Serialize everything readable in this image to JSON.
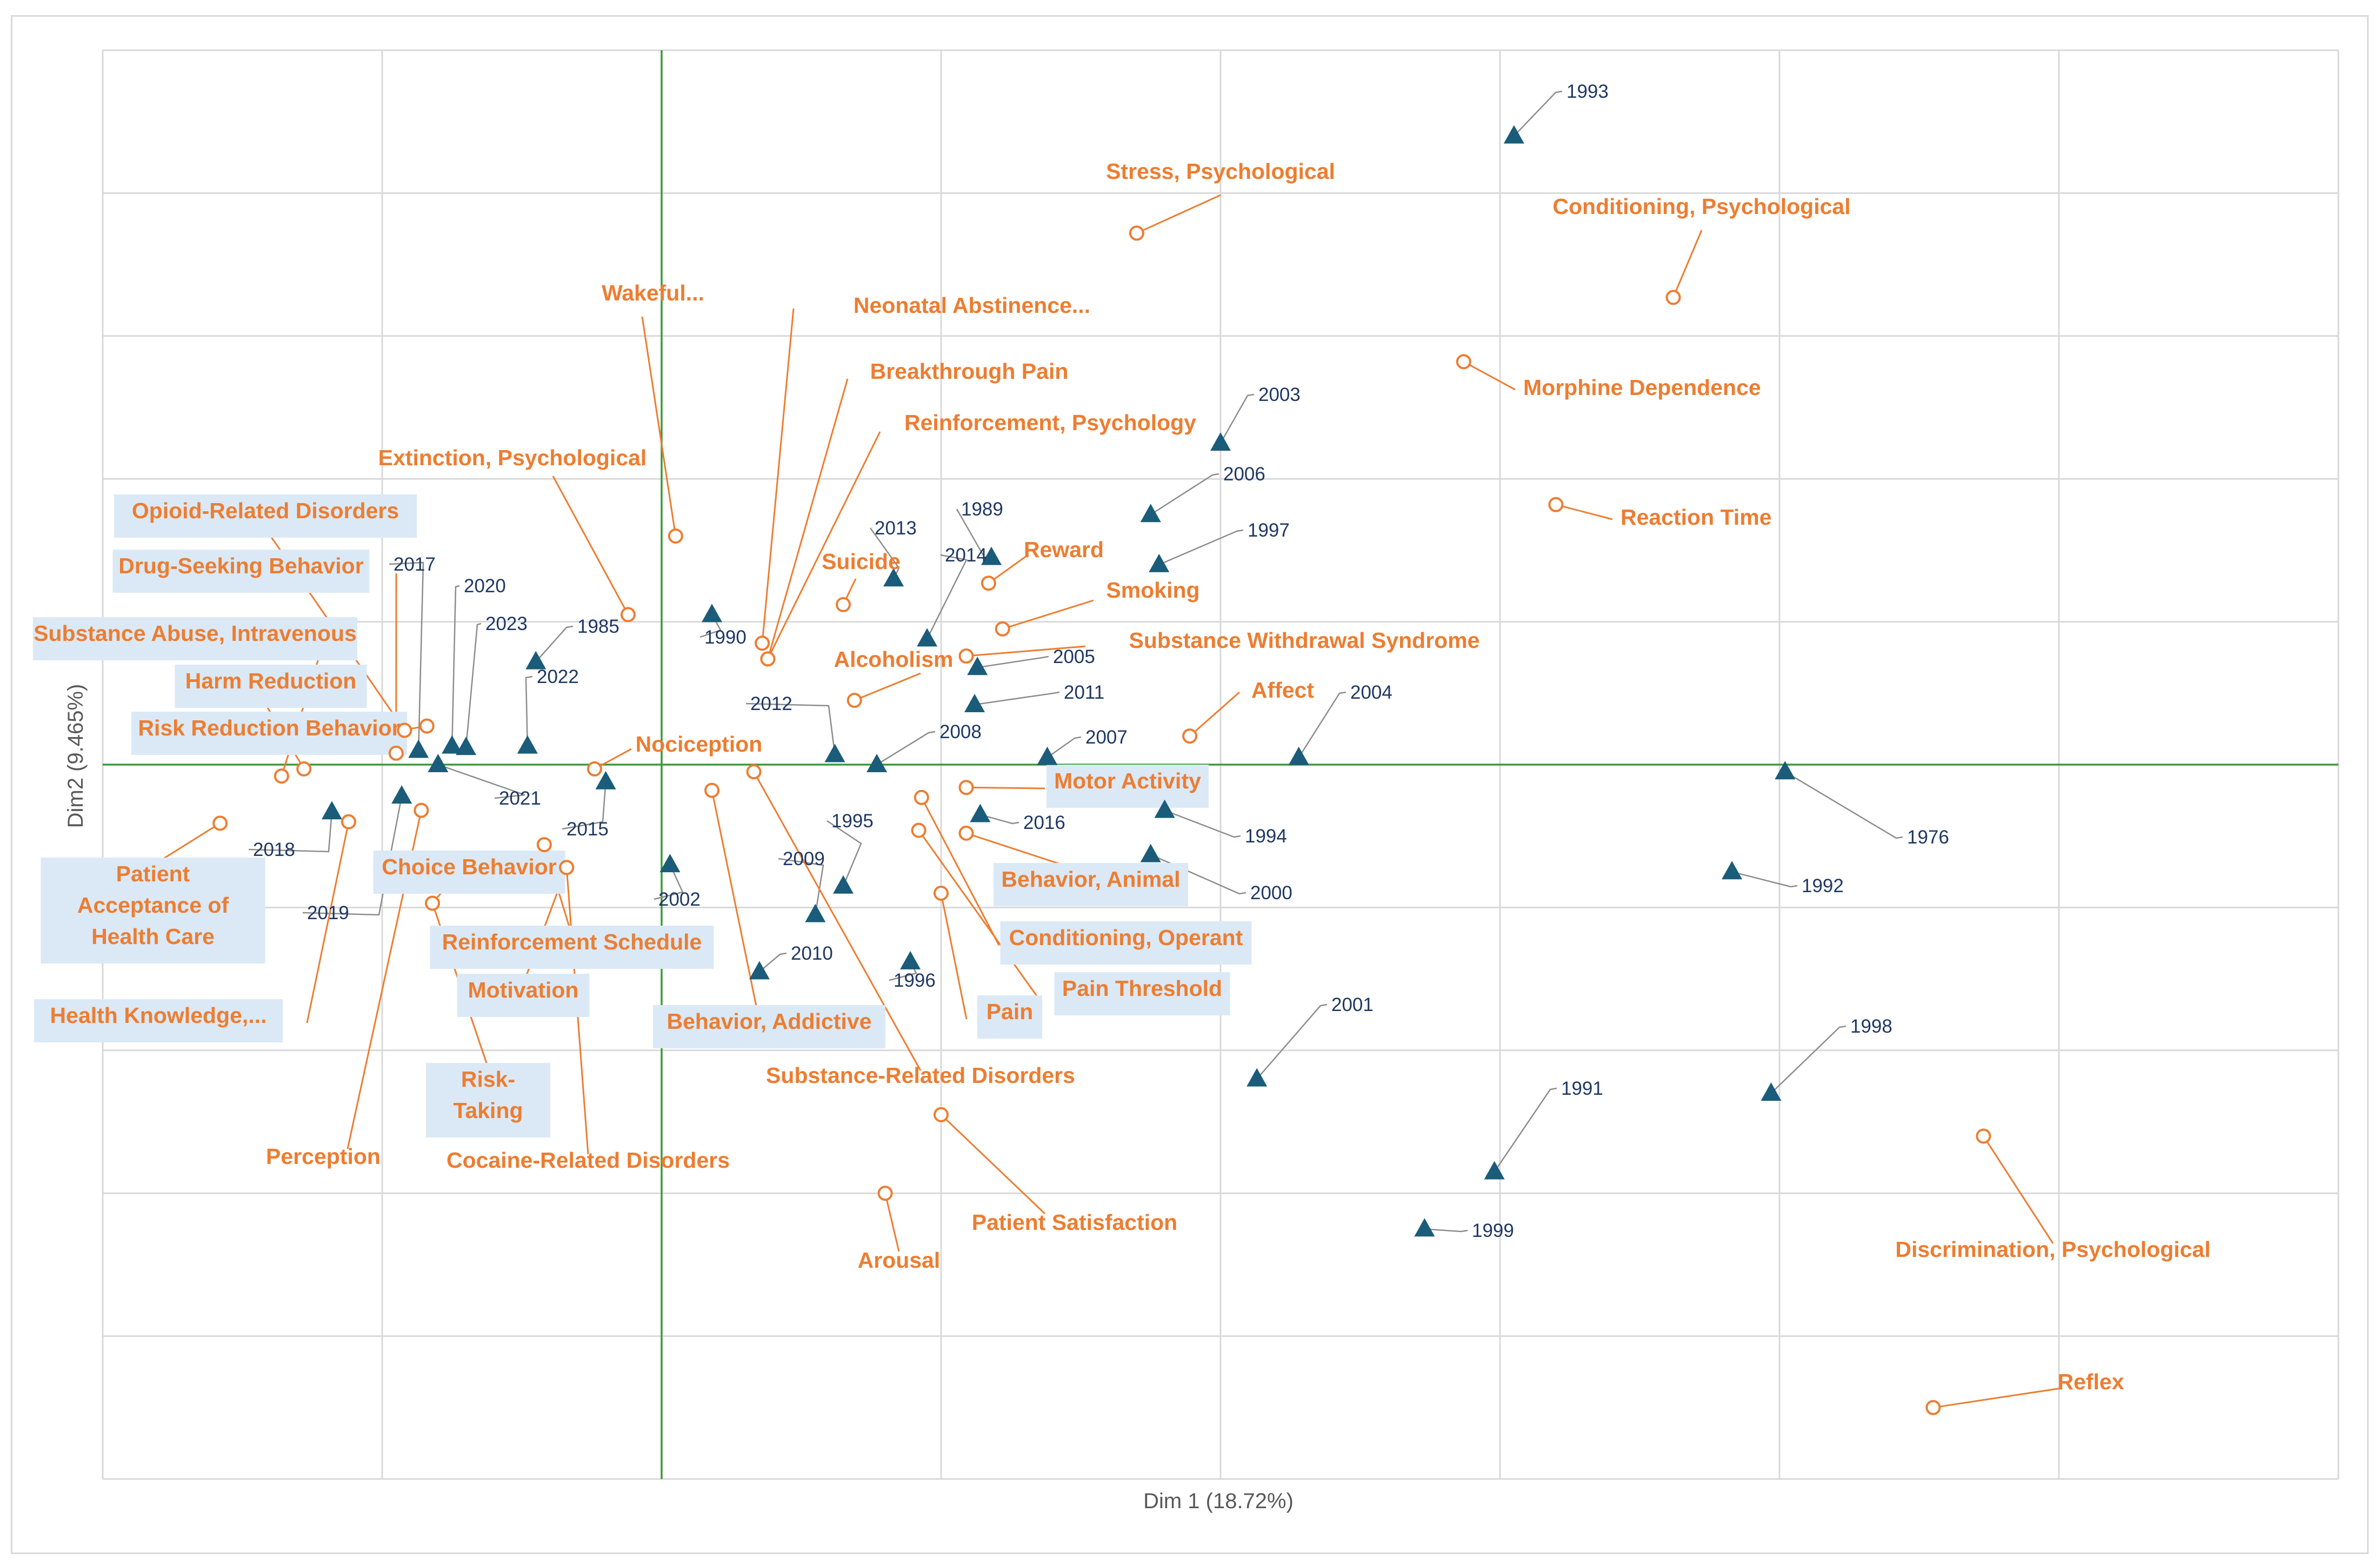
{
  "chart_data": {
    "type": "scatter",
    "title": "",
    "xlabel": "Dim 1 (18.72%)",
    "ylabel": "Dim2 (9.465%)",
    "xlim": [
      -2.0,
      6.0
    ],
    "ylim": [
      -5.0,
      5.0
    ],
    "grid": true,
    "colors": {
      "years": "#1a5c7a",
      "years_label": "#1f3864",
      "terms": "#ed7d31",
      "axes_zero": "#3a9a3a",
      "grid": "#d9d9d9",
      "leader_year": "#8c8c8c",
      "highlight_box": "#dbe9f6"
    },
    "series": [
      {
        "name": "Years",
        "marker": "triangle",
        "points": [
          {
            "label": "1993",
            "x": 3.05,
            "y": 4.4
          },
          {
            "label": "2003",
            "x": 2.0,
            "y": 2.25
          },
          {
            "label": "2006",
            "x": 1.75,
            "y": 1.75
          },
          {
            "label": "1997",
            "x": 1.78,
            "y": 1.4
          },
          {
            "label": "1989",
            "x": 1.18,
            "y": 1.45
          },
          {
            "label": "2013",
            "x": 0.83,
            "y": 1.3
          },
          {
            "label": "2014",
            "x": 0.95,
            "y": 0.88
          },
          {
            "label": "2005",
            "x": 1.13,
            "y": 0.68
          },
          {
            "label": "2011",
            "x": 1.12,
            "y": 0.42
          },
          {
            "label": "1990",
            "x": 0.18,
            "y": 1.05
          },
          {
            "label": "1985",
            "x": -0.45,
            "y": 0.72
          },
          {
            "label": "2022",
            "x": -0.48,
            "y": 0.13
          },
          {
            "label": "2017",
            "x": -0.87,
            "y": 0.1
          },
          {
            "label": "2020",
            "x": -0.75,
            "y": 0.13
          },
          {
            "label": "2023",
            "x": -0.7,
            "y": 0.12
          },
          {
            "label": "2021",
            "x": -0.8,
            "y": 0.0
          },
          {
            "label": "2012",
            "x": 0.62,
            "y": 0.07
          },
          {
            "label": "2008",
            "x": 0.77,
            "y": 0.0
          },
          {
            "label": "2007",
            "x": 1.38,
            "y": 0.05
          },
          {
            "label": "2004",
            "x": 2.28,
            "y": 0.05
          },
          {
            "label": "1976",
            "x": 4.02,
            "y": -0.05
          },
          {
            "label": "2015",
            "x": -0.2,
            "y": -0.12
          },
          {
            "label": "2018",
            "x": -1.18,
            "y": -0.33
          },
          {
            "label": "2019",
            "x": -0.93,
            "y": -0.22
          },
          {
            "label": "2016",
            "x": 1.14,
            "y": -0.35
          },
          {
            "label": "1994",
            "x": 1.8,
            "y": -0.32
          },
          {
            "label": "2000",
            "x": 1.75,
            "y": -0.63
          },
          {
            "label": "2002",
            "x": 0.03,
            "y": -0.7
          },
          {
            "label": "1995",
            "x": 0.65,
            "y": -0.85
          },
          {
            "label": "2009",
            "x": 0.55,
            "y": -1.05
          },
          {
            "label": "2010",
            "x": 0.35,
            "y": -1.45
          },
          {
            "label": "1996",
            "x": 0.89,
            "y": -1.38
          },
          {
            "label": "1992",
            "x": 3.83,
            "y": -0.75
          },
          {
            "label": "2001",
            "x": 2.13,
            "y": -2.2
          },
          {
            "label": "1998",
            "x": 3.97,
            "y": -2.3
          },
          {
            "label": "1991",
            "x": 2.98,
            "y": -2.85
          },
          {
            "label": "1999",
            "x": 2.73,
            "y": -3.25
          }
        ]
      },
      {
        "name": "Terms",
        "marker": "circle",
        "points": [
          {
            "label": "Stress, Psychological",
            "x": 1.7,
            "y": 3.72,
            "highlight": false
          },
          {
            "label": "Conditioning, Psychological",
            "x": 3.62,
            "y": 3.27,
            "highlight": false
          },
          {
            "label": "Morphine Dependence",
            "x": 2.87,
            "y": 2.82,
            "highlight": false
          },
          {
            "label": "Reaction Time",
            "x": 3.2,
            "y": 1.82,
            "highlight": false
          },
          {
            "label": "Wakeful...",
            "x": 0.05,
            "y": 1.6,
            "highlight": false
          },
          {
            "label": "Neonatal Abstinence...",
            "x": 0.36,
            "y": 0.85,
            "highlight": false
          },
          {
            "label": "Breakthrough Pain",
            "x": 0.38,
            "y": 0.74,
            "highlight": false
          },
          {
            "label": "Reinforcement, Psychology",
            "x": 0.38,
            "y": 0.74,
            "highlight": false
          },
          {
            "label": "Extinction, Psychological",
            "x": -0.12,
            "y": 1.05,
            "highlight": false
          },
          {
            "label": "Suicide",
            "x": 0.65,
            "y": 1.12,
            "highlight": false
          },
          {
            "label": "Reward",
            "x": 1.17,
            "y": 1.27,
            "highlight": false
          },
          {
            "label": "Smoking",
            "x": 1.22,
            "y": 0.95,
            "highlight": false
          },
          {
            "label": "Substance Withdrawal Syndrome",
            "x": 1.09,
            "y": 0.76,
            "highlight": false
          },
          {
            "label": "Alcoholism",
            "x": 0.69,
            "y": 0.45,
            "highlight": false
          },
          {
            "label": "Affect",
            "x": 1.89,
            "y": 0.2,
            "highlight": false
          },
          {
            "label": "Nociception",
            "x": -0.24,
            "y": -0.03,
            "highlight": false
          },
          {
            "label": "Opioid-Related Disorders",
            "x": -0.92,
            "y": 0.24,
            "highlight": true
          },
          {
            "label": "Drug-Seeking Behavior",
            "x": -0.95,
            "y": 0.08,
            "highlight": true
          },
          {
            "label": "Substance Abuse, Intravenous",
            "x": -1.36,
            "y": -0.08,
            "highlight": true
          },
          {
            "label": "Harm Reduction",
            "x": -1.28,
            "y": -0.03,
            "highlight": true
          },
          {
            "label": "Risk Reduction Behavior",
            "x": -0.84,
            "y": 0.27,
            "highlight": true
          },
          {
            "label": "Patient Acceptance of Health Care",
            "x": -1.58,
            "y": -0.41,
            "highlight": true
          },
          {
            "label": "Health Knowledge,...",
            "x": -1.12,
            "y": -0.4,
            "highlight": true
          },
          {
            "label": "Perception",
            "x": -0.86,
            "y": -0.32,
            "highlight": false
          },
          {
            "label": "Choice Behavior",
            "x": -0.82,
            "y": -0.97,
            "highlight": true
          },
          {
            "label": "Reinforcement Schedule",
            "x": -0.42,
            "y": -0.56,
            "highlight": true
          },
          {
            "label": "Motivation",
            "x": -0.34,
            "y": -0.72,
            "highlight": true
          },
          {
            "label": "Risk-Taking",
            "x": -0.82,
            "y": -0.97,
            "highlight": true
          },
          {
            "label": "Cocaine-Related Disorders",
            "x": -0.34,
            "y": -0.72,
            "highlight": false
          },
          {
            "label": "Behavior, Addictive",
            "x": 0.18,
            "y": -0.18,
            "highlight": true
          },
          {
            "label": "Substance-Related Disorders",
            "x": 0.33,
            "y": -0.05,
            "highlight": false
          },
          {
            "label": "Motor Activity",
            "x": 1.09,
            "y": -0.16,
            "highlight": true
          },
          {
            "label": "Behavior, Animal",
            "x": 1.09,
            "y": -0.48,
            "highlight": true
          },
          {
            "label": "Conditioning, Operant",
            "x": 0.93,
            "y": -0.23,
            "highlight": true
          },
          {
            "label": "Pain Threshold",
            "x": 0.92,
            "y": -0.46,
            "highlight": true
          },
          {
            "label": "Pain",
            "x": 1.0,
            "y": -0.9,
            "highlight": true
          },
          {
            "label": "Patient Satisfaction",
            "x": 1.0,
            "y": -2.45,
            "highlight": false
          },
          {
            "label": "Arousal",
            "x": 0.8,
            "y": -3.0,
            "highlight": false
          },
          {
            "label": "Discrimination, Psychological",
            "x": 4.73,
            "y": -2.6,
            "highlight": false
          },
          {
            "label": "Reflex",
            "x": 4.55,
            "y": -4.5,
            "highlight": false
          }
        ]
      }
    ]
  }
}
